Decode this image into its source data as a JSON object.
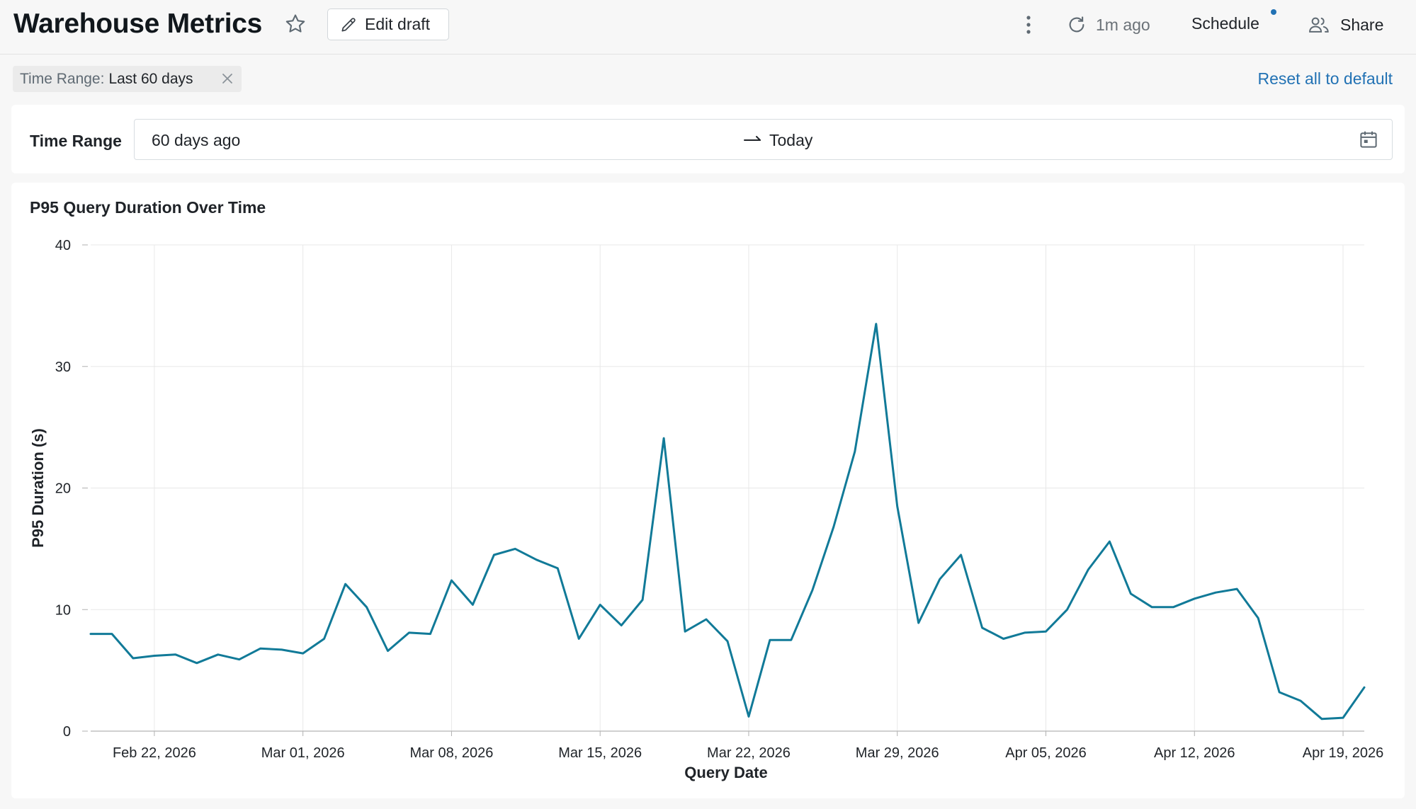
{
  "header": {
    "title": "Warehouse Metrics",
    "edit_label": "Edit draft",
    "refreshed": "1m ago",
    "schedule_label": "Schedule",
    "share_label": "Share"
  },
  "filters": {
    "chip_key": "Time Range:",
    "chip_value": "Last 60 days",
    "reset_label": "Reset all to default"
  },
  "time_range": {
    "label": "Time Range",
    "from": "60 days ago",
    "to": "Today"
  },
  "colors": {
    "accent": "#2272b4",
    "series": "#117a98"
  },
  "chart_data": {
    "type": "line",
    "title": "P95 Query Duration Over Time",
    "xlabel": "Query Date",
    "ylabel": "P95 Duration (s)",
    "ylim": [
      0,
      40
    ],
    "yticks": [
      0,
      10,
      20,
      30,
      40
    ],
    "xlim": [
      "2026-02-19",
      "2026-04-20"
    ],
    "xticks": [
      {
        "date": "2026-02-22",
        "label": "Feb 22, 2026"
      },
      {
        "date": "2026-03-01",
        "label": "Mar 01, 2026"
      },
      {
        "date": "2026-03-08",
        "label": "Mar 08, 2026"
      },
      {
        "date": "2026-03-15",
        "label": "Mar 15, 2026"
      },
      {
        "date": "2026-03-22",
        "label": "Mar 22, 2026"
      },
      {
        "date": "2026-03-29",
        "label": "Mar 29, 2026"
      },
      {
        "date": "2026-04-05",
        "label": "Apr 05, 2026"
      },
      {
        "date": "2026-04-12",
        "label": "Apr 12, 2026"
      },
      {
        "date": "2026-04-19",
        "label": "Apr 19, 2026"
      }
    ],
    "grid": true,
    "series": [
      {
        "x": [
          "2026-02-19",
          "2026-02-20",
          "2026-02-21",
          "2026-02-22",
          "2026-02-23",
          "2026-02-24",
          "2026-02-25",
          "2026-02-26",
          "2026-02-27",
          "2026-02-28",
          "2026-03-01",
          "2026-03-02",
          "2026-03-03",
          "2026-03-04",
          "2026-03-05",
          "2026-03-06",
          "2026-03-07",
          "2026-03-08",
          "2026-03-09",
          "2026-03-10",
          "2026-03-11",
          "2026-03-12",
          "2026-03-13",
          "2026-03-14",
          "2026-03-15",
          "2026-03-16",
          "2026-03-17",
          "2026-03-18",
          "2026-03-19",
          "2026-03-20",
          "2026-03-21",
          "2026-03-22",
          "2026-03-23",
          "2026-03-24",
          "2026-03-25",
          "2026-03-26",
          "2026-03-27",
          "2026-03-28",
          "2026-03-29",
          "2026-03-30",
          "2026-03-31",
          "2026-04-01",
          "2026-04-02",
          "2026-04-03",
          "2026-04-04",
          "2026-04-05",
          "2026-04-06",
          "2026-04-07",
          "2026-04-08",
          "2026-04-09",
          "2026-04-10",
          "2026-04-11",
          "2026-04-12",
          "2026-04-13",
          "2026-04-14",
          "2026-04-15",
          "2026-04-16",
          "2026-04-17",
          "2026-04-18",
          "2026-04-19",
          "2026-04-20"
        ],
        "values": [
          8.0,
          8.0,
          6.0,
          6.2,
          6.3,
          5.6,
          6.3,
          5.9,
          6.8,
          6.7,
          6.4,
          7.6,
          12.1,
          10.2,
          6.6,
          8.1,
          8.0,
          12.4,
          10.4,
          14.5,
          15.0,
          14.1,
          13.4,
          7.6,
          10.4,
          8.7,
          10.8,
          24.1,
          8.2,
          9.2,
          7.4,
          1.2,
          7.5,
          7.5,
          11.6,
          16.8,
          23.0,
          33.5,
          18.5,
          8.9,
          12.5,
          14.5,
          8.5,
          7.6,
          8.1,
          8.2,
          10.0,
          13.3,
          15.6,
          11.3,
          10.2,
          10.2,
          10.9,
          11.4,
          11.7,
          9.3,
          3.2,
          2.5,
          1.0,
          1.1,
          3.6
        ]
      }
    ]
  }
}
